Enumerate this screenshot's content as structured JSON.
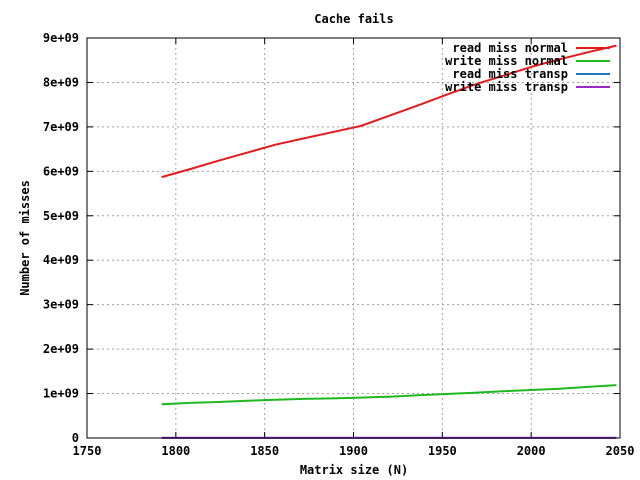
{
  "chart_data": {
    "type": "line",
    "title": "Cache fails",
    "xlabel": "Matrix size (N)",
    "ylabel": "Number of misses",
    "xlim": [
      1750,
      2050
    ],
    "ylim": [
      0,
      9000000000
    ],
    "grid": true,
    "legend_position": "top-right",
    "x_ticks": [
      1750,
      1800,
      1850,
      1900,
      1950,
      2000,
      2050
    ],
    "x_tick_labels": [
      "1750",
      "1800",
      "1850",
      "1900",
      "1950",
      "2000",
      "2050"
    ],
    "y_ticks": [
      0,
      1000000000,
      2000000000,
      3000000000,
      4000000000,
      5000000000,
      6000000000,
      7000000000,
      8000000000,
      9000000000
    ],
    "y_tick_labels": [
      "0",
      "1e+09",
      "2e+09",
      "3e+09",
      "4e+09",
      "5e+09",
      "6e+09",
      "7e+09",
      "8e+09",
      "9e+09"
    ],
    "x": [
      1792,
      1808,
      1824,
      1840,
      1856,
      1872,
      1888,
      1904,
      1920,
      1936,
      1952,
      1968,
      1984,
      2000,
      2016,
      2032,
      2048
    ],
    "series": [
      {
        "name": "read miss normal",
        "color": "#e41a1c",
        "values": [
          5870000000,
          6050000000,
          6240000000,
          6420000000,
          6600000000,
          6740000000,
          6880000000,
          7020000000,
          7250000000,
          7480000000,
          7720000000,
          7950000000,
          8150000000,
          8350000000,
          8520000000,
          8680000000,
          8830000000
        ]
      },
      {
        "name": "write miss normal",
        "color": "#1fb81f",
        "values": [
          760000000,
          790000000,
          810000000,
          840000000,
          860000000,
          880000000,
          890000000,
          910000000,
          930000000,
          960000000,
          990000000,
          1020000000,
          1050000000,
          1080000000,
          1110000000,
          1150000000,
          1190000000
        ]
      },
      {
        "name": "read miss transp",
        "color": "#1e78c8",
        "values": [
          2000000,
          2000000,
          2000000,
          2000000,
          2000000,
          2000000,
          2000000,
          2000000,
          2000000,
          2000000,
          2000000,
          2000000,
          2000000,
          2000000,
          2000000,
          2000000,
          2000000
        ]
      },
      {
        "name": "write miss transp",
        "color": "#9c27c8",
        "values": [
          2000000,
          2000000,
          2000000,
          2000000,
          2000000,
          2000000,
          2000000,
          2000000,
          2000000,
          2000000,
          2000000,
          2000000,
          2000000,
          2000000,
          2000000,
          2000000,
          2000000
        ]
      }
    ]
  }
}
